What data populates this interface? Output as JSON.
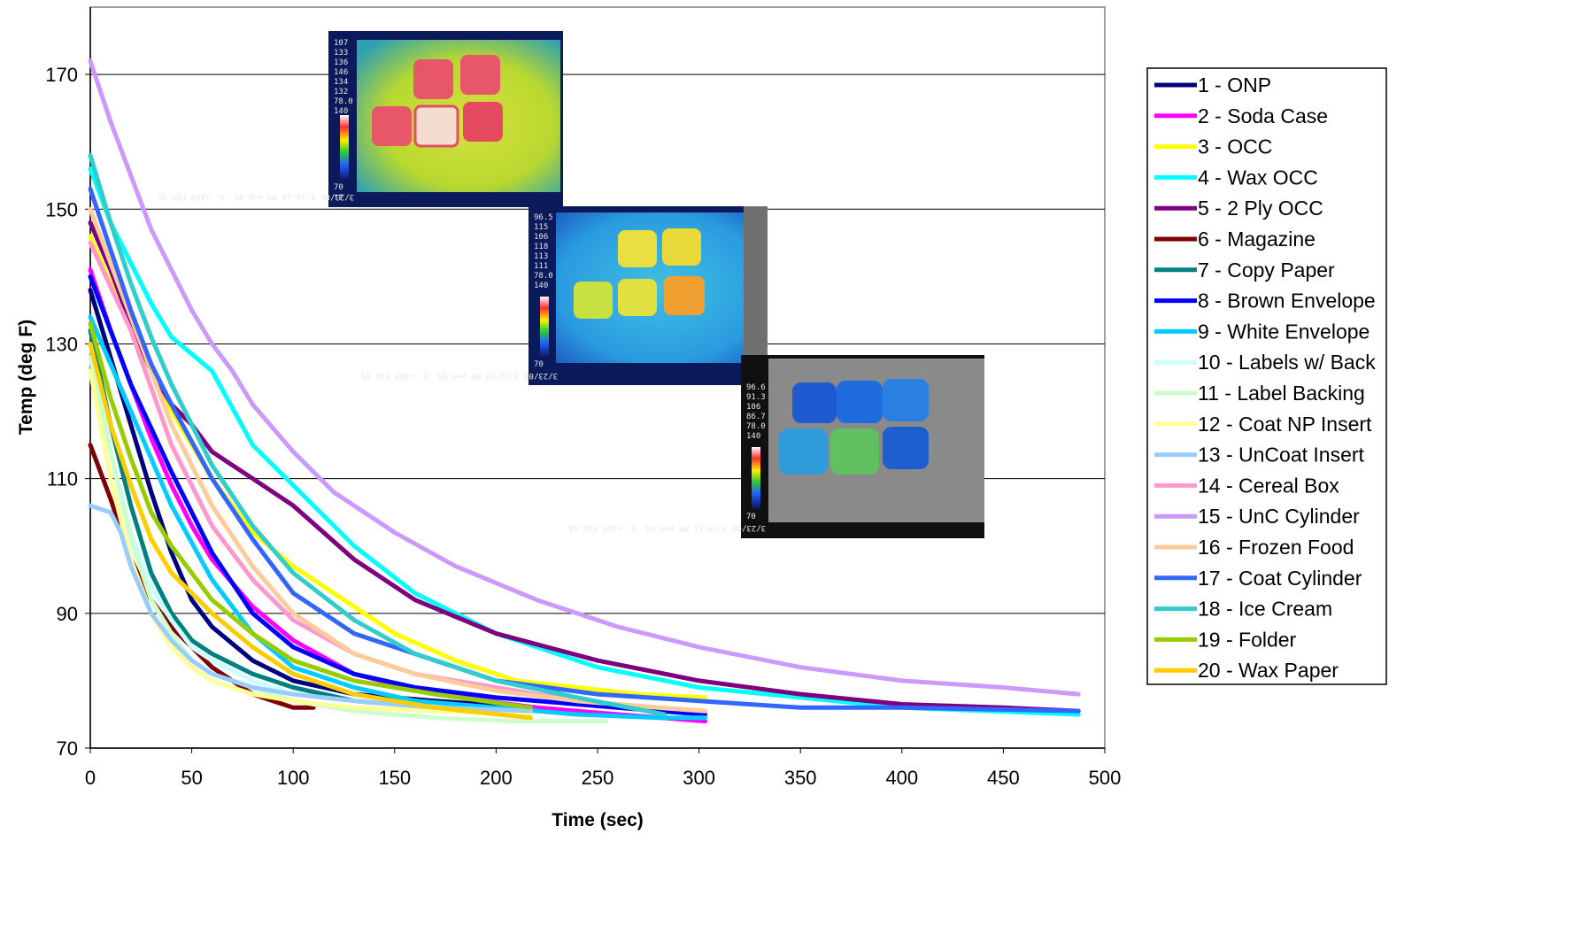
{
  "chart_data": {
    "type": "line",
    "title": "",
    "xlabel": "Time (sec)",
    "ylabel": "Temp (deg F)",
    "xlim": [
      0,
      500
    ],
    "ylim": [
      70,
      180
    ],
    "x_ticks": [
      "0",
      "50",
      "100",
      "150",
      "200",
      "250",
      "300",
      "350",
      "400",
      "450",
      "500"
    ],
    "y_ticks": [
      "70",
      "90",
      "110",
      "130",
      "150",
      "170"
    ],
    "grid": "horizontal major gridlines",
    "legend_position": "right",
    "series": [
      {
        "name": "1 - ONP",
        "color": "#00007f",
        "x": [
          0,
          10,
          20,
          30,
          40,
          50,
          60,
          80,
          100,
          130,
          170,
          217
        ],
        "y": [
          138,
          128,
          118,
          108,
          99,
          92,
          88,
          83,
          80,
          78,
          77,
          76
        ]
      },
      {
        "name": "2 - Soda Case",
        "color": "#ff00ff",
        "x": [
          0,
          10,
          20,
          30,
          40,
          50,
          60,
          80,
          100,
          130,
          170,
          220,
          260,
          303
        ],
        "y": [
          141,
          132,
          124,
          116,
          109,
          103,
          98,
          91,
          86,
          81,
          78,
          76,
          75,
          74
        ]
      },
      {
        "name": "3 - OCC",
        "color": "#ffff00",
        "x": [
          0,
          20,
          40,
          60,
          80,
          100,
          120,
          150,
          180,
          210,
          240,
          270,
          303
        ],
        "y": [
          146,
          132,
          120,
          110,
          102,
          97,
          93,
          87,
          83,
          80,
          79,
          78,
          77.5
        ]
      },
      {
        "name": "4 - Wax OCC",
        "color": "#00ffff",
        "x": [
          0,
          10,
          20,
          30,
          40,
          60,
          80,
          100,
          130,
          160,
          200,
          250,
          300,
          400,
          487
        ],
        "y": [
          156,
          148,
          142,
          136,
          131,
          126,
          115,
          109,
          100,
          93,
          87,
          82,
          79,
          76,
          75
        ]
      },
      {
        "name": "5 - 2 Ply OCC",
        "color": "#7f007f",
        "x": [
          0,
          10,
          20,
          30,
          40,
          50,
          60,
          70,
          80,
          100,
          130,
          160,
          200,
          250,
          300,
          350,
          400,
          450,
          487
        ],
        "y": [
          148,
          141,
          133,
          126,
          121,
          118,
          114,
          112,
          110,
          106,
          98,
          92,
          87,
          83,
          80,
          78,
          76.5,
          76,
          75.5
        ]
      },
      {
        "name": "6 - Magazine",
        "color": "#7f0000",
        "x": [
          0,
          10,
          20,
          30,
          40,
          50,
          60,
          70,
          80,
          90,
          100,
          110
        ],
        "y": [
          115,
          107,
          98,
          92,
          88,
          85,
          82,
          80,
          78,
          77,
          76,
          76
        ]
      },
      {
        "name": "7 - Copy Paper",
        "color": "#007f7f",
        "x": [
          0,
          10,
          20,
          30,
          40,
          50,
          60,
          80,
          100,
          130,
          170,
          217
        ],
        "y": [
          132,
          118,
          106,
          96,
          90,
          86,
          84,
          81,
          79,
          77,
          76,
          75.5
        ]
      },
      {
        "name": "8 - Brown Envelope",
        "color": "#0000ff",
        "x": [
          0,
          20,
          40,
          60,
          80,
          100,
          130,
          160,
          200,
          240,
          280,
          303
        ],
        "y": [
          140,
          124,
          111,
          99,
          90,
          85,
          81,
          79,
          77.5,
          76.5,
          75.5,
          75
        ]
      },
      {
        "name": "9 - White Envelope",
        "color": "#00ccff",
        "x": [
          0,
          20,
          40,
          60,
          80,
          100,
          130,
          160,
          200,
          240,
          280,
          303
        ],
        "y": [
          134,
          120,
          106,
          95,
          87,
          82,
          79,
          77,
          76,
          75,
          74.5,
          74.5
        ]
      },
      {
        "name": "10 - Labels w/ Back",
        "color": "#ccffff",
        "x": [
          0,
          10,
          20,
          30,
          40,
          50,
          60,
          80,
          100,
          130,
          170,
          217
        ],
        "y": [
          130,
          114,
          102,
          94,
          89,
          85,
          83,
          80,
          78,
          77,
          76,
          75.5
        ]
      },
      {
        "name": "11 - Label Backing",
        "color": "#ccffcc",
        "x": [
          0,
          10,
          20,
          30,
          40,
          50,
          60,
          80,
          100,
          130,
          170,
          210,
          254
        ],
        "y": [
          128,
          114,
          101,
          92,
          87,
          83,
          81,
          79,
          77,
          75.5,
          74.5,
          74,
          74
        ]
      },
      {
        "name": "12 - Coat NP Insert",
        "color": "#ffff99",
        "x": [
          0,
          10,
          20,
          30,
          40,
          50,
          60,
          80,
          100,
          130,
          170,
          217
        ],
        "y": [
          126,
          110,
          98,
          90,
          85,
          82,
          80,
          78,
          77,
          76,
          75.5,
          75
        ]
      },
      {
        "name": "13 - UnCoat Insert",
        "color": "#99ccff",
        "x": [
          0,
          10,
          15,
          20,
          30,
          40,
          50,
          60,
          80,
          100,
          130,
          170,
          217
        ],
        "y": [
          106,
          105,
          102,
          97,
          90,
          86,
          83,
          81,
          79,
          78,
          77,
          76,
          75.5
        ]
      },
      {
        "name": "14 - Cereal Box",
        "color": "#ff99cc",
        "x": [
          0,
          20,
          40,
          60,
          80,
          100,
          130,
          160,
          200,
          240,
          280,
          303
        ],
        "y": [
          145,
          132,
          115,
          103,
          95,
          89,
          84,
          81,
          79,
          77,
          76,
          75.5
        ]
      },
      {
        "name": "15 - UnC Cylinder",
        "color": "#cc99ff",
        "x": [
          0,
          10,
          20,
          30,
          40,
          50,
          60,
          70,
          80,
          100,
          120,
          150,
          180,
          220,
          260,
          300,
          350,
          400,
          450,
          487
        ],
        "y": [
          172,
          163,
          155,
          147,
          141,
          135,
          130,
          126,
          121,
          114,
          108,
          102,
          97,
          92,
          88,
          85,
          82,
          80,
          79,
          78
        ]
      },
      {
        "name": "16 - Frozen Food",
        "color": "#ffcc99",
        "x": [
          0,
          20,
          40,
          60,
          80,
          100,
          130,
          160,
          200,
          240,
          280,
          303
        ],
        "y": [
          150,
          134,
          118,
          106,
          97,
          90,
          84,
          81,
          78.5,
          77,
          76,
          75.5
        ]
      },
      {
        "name": "17 - Coat Cylinder",
        "color": "#3366ff",
        "x": [
          0,
          10,
          20,
          30,
          40,
          60,
          80,
          100,
          130,
          160,
          200,
          250,
          300,
          350,
          400,
          487
        ],
        "y": [
          153,
          144,
          135,
          127,
          121,
          110,
          101,
          93,
          87,
          84,
          80,
          78,
          77,
          76,
          76,
          75.5
        ]
      },
      {
        "name": "18 - Ice Cream",
        "color": "#33cccc",
        "x": [
          0,
          10,
          20,
          30,
          40,
          60,
          80,
          100,
          130,
          160,
          200,
          240,
          283
        ],
        "y": [
          158,
          148,
          139,
          131,
          124,
          112,
          103,
          96,
          89,
          84,
          80,
          77.5,
          75
        ]
      },
      {
        "name": "19 - Folder",
        "color": "#99cc00",
        "x": [
          0,
          10,
          20,
          30,
          40,
          50,
          60,
          80,
          100,
          130,
          170,
          217
        ],
        "y": [
          133,
          122,
          113,
          105,
          100,
          96,
          92,
          87,
          83,
          80,
          78,
          76
        ]
      },
      {
        "name": "20 - Wax Paper",
        "color": "#ffcc00",
        "x": [
          0,
          10,
          20,
          30,
          40,
          50,
          60,
          80,
          100,
          130,
          170,
          217
        ],
        "y": [
          130,
          118,
          109,
          101,
          96,
          93,
          90,
          85,
          81,
          78,
          76,
          74.5
        ]
      }
    ]
  },
  "thermal_images": [
    {
      "caption": "3/23/06 3:18:24 PM e=0.96 -5- +480 FOV 45",
      "readings": [
        "107",
        "133",
        "136",
        "146",
        "134",
        "132",
        "78.0",
        "140"
      ],
      "scale_top": "140",
      "scale_bottom": "70",
      "unit": "°F"
    },
    {
      "caption": "3/23/06 3:22:00 PM e=0.96 -5- +480 FOV 45",
      "readings": [
        "96.5",
        "115",
        "106",
        "118",
        "113",
        "111",
        "78.0",
        "140"
      ],
      "scale_top": "140",
      "scale_bottom": "70",
      "unit": "°F"
    },
    {
      "caption": "3/23/06 3:18:11 PM e=0.96 -5- +480 FOV 45",
      "readings": [
        "96.6",
        "91.3",
        "106",
        "86.7",
        "78.0",
        "140"
      ],
      "scale_top": "140",
      "scale_bottom": "70",
      "unit": "°F"
    }
  ]
}
